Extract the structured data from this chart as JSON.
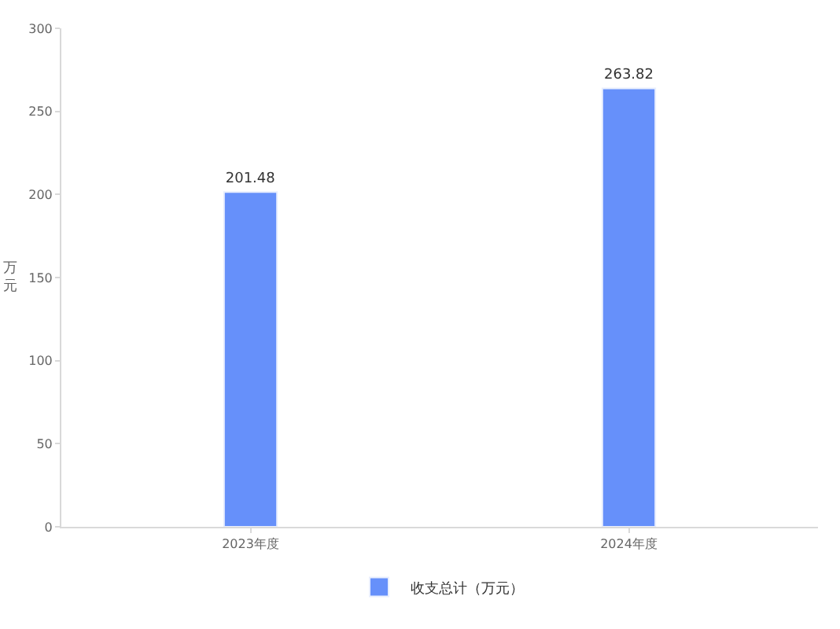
{
  "chart_data": {
    "type": "bar",
    "ylabel": "万元",
    "categories": [
      "2023年度",
      "2024年度"
    ],
    "series": [
      {
        "name": "收支总计（万元）",
        "color": "#6690fa",
        "values": [
          201.48,
          263.82
        ]
      }
    ],
    "ylim": [
      0,
      300
    ],
    "yticks": [
      0,
      50,
      100,
      150,
      200,
      250,
      300
    ],
    "data_labels": true,
    "grid": false,
    "legend": "bottom"
  }
}
